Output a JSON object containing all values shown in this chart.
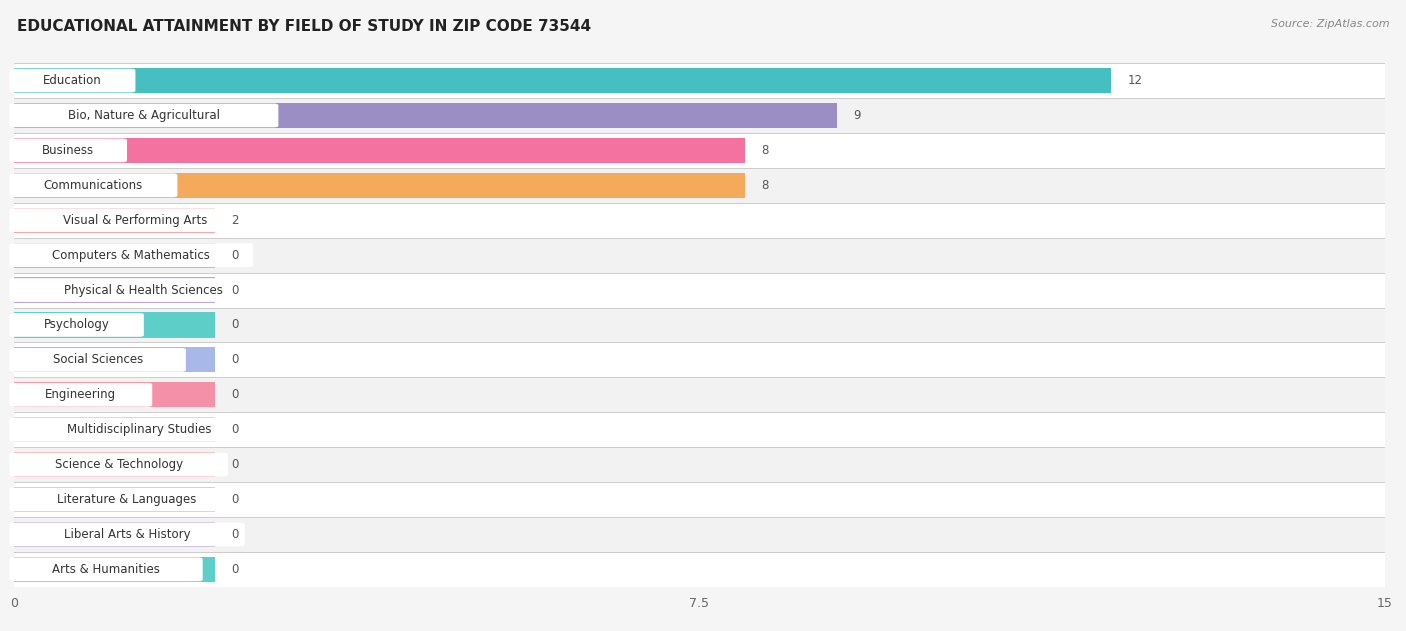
{
  "title": "EDUCATIONAL ATTAINMENT BY FIELD OF STUDY IN ZIP CODE 73544",
  "source": "Source: ZipAtlas.com",
  "categories": [
    "Education",
    "Bio, Nature & Agricultural",
    "Business",
    "Communications",
    "Visual & Performing Arts",
    "Computers & Mathematics",
    "Physical & Health Sciences",
    "Psychology",
    "Social Sciences",
    "Engineering",
    "Multidisciplinary Studies",
    "Science & Technology",
    "Literature & Languages",
    "Liberal Arts & History",
    "Arts & Humanities"
  ],
  "values": [
    12,
    9,
    8,
    8,
    2,
    0,
    0,
    0,
    0,
    0,
    0,
    0,
    0,
    0,
    0
  ],
  "bar_colors": [
    "#45BFBF",
    "#9B8EC4",
    "#F472A0",
    "#F5A95A",
    "#F4A0A0",
    "#A8BFE8",
    "#B8A8D8",
    "#5ECFC8",
    "#A8B8E8",
    "#F490A8",
    "#F8C898",
    "#F4B0B0",
    "#A8C0E8",
    "#C0A8D8",
    "#5ECFC8"
  ],
  "min_bar_width": 2.2,
  "xlim": [
    0,
    15
  ],
  "xticks": [
    0,
    7.5,
    15
  ],
  "background_color": "#f5f5f5",
  "row_colors": [
    "#ffffff",
    "#f2f2f2"
  ],
  "title_fontsize": 11,
  "label_fontsize": 8.5,
  "value_fontsize": 8.5,
  "source_fontsize": 8
}
